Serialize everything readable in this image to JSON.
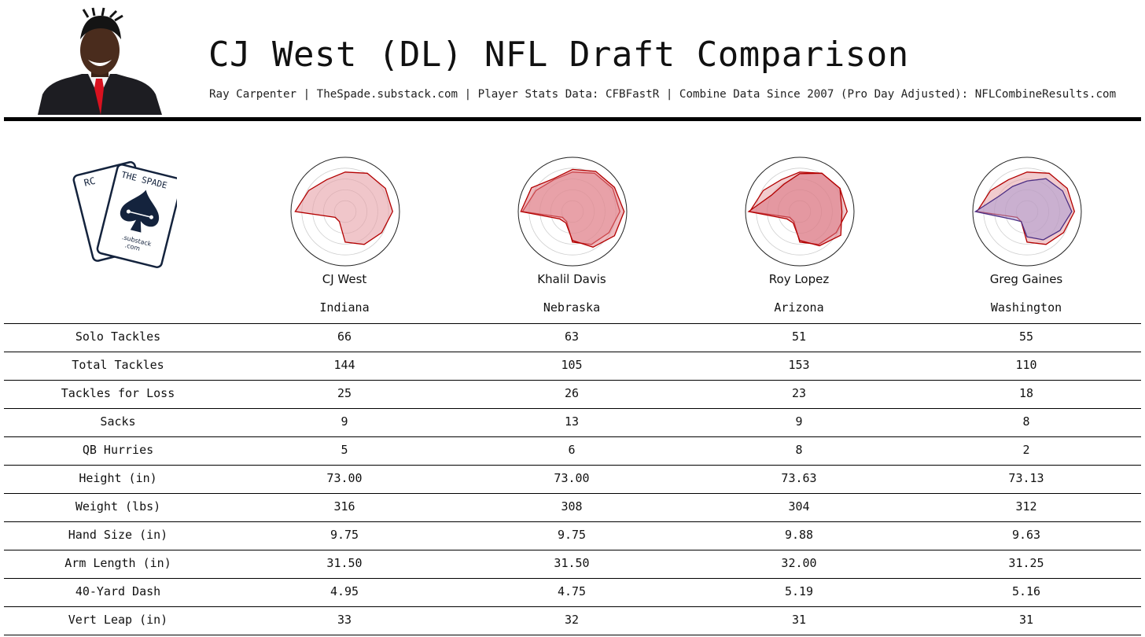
{
  "header": {
    "title": "CJ West (DL) NFL Draft Comparison",
    "subtitle": "Ray Carpenter | TheSpade.substack.com | Player Stats Data: CFBFastR | Combine Data Since 2007 (Pro Day Adjusted): NFLCombineResults.com"
  },
  "logo": {
    "left_card_text": "RC",
    "right_card_text": "THE SPADE",
    "footer_text_1": ".substack",
    "footer_text_2": ".com",
    "color": "#14233d"
  },
  "players": [
    {
      "name": "CJ West",
      "school": "Indiana"
    },
    {
      "name": "Khalil Davis",
      "school": "Nebraska"
    },
    {
      "name": "Roy Lopez",
      "school": "Arizona"
    },
    {
      "name": "Greg Gaines",
      "school": "Washington"
    }
  ],
  "table": {
    "rows": [
      {
        "label": "Solo Tackles",
        "values": [
          "66",
          "63",
          "51",
          "55"
        ]
      },
      {
        "label": "Total Tackles",
        "values": [
          "144",
          "105",
          "153",
          "110"
        ]
      },
      {
        "label": "Tackles for Loss",
        "values": [
          "25",
          "26",
          "23",
          "18"
        ]
      },
      {
        "label": "Sacks",
        "values": [
          "9",
          "13",
          "9",
          "8"
        ]
      },
      {
        "label": "QB Hurries",
        "values": [
          "5",
          "6",
          "8",
          "2"
        ]
      },
      {
        "label": "Height (in)",
        "values": [
          "73.00",
          "73.00",
          "73.63",
          "73.13"
        ]
      },
      {
        "label": "Weight (lbs)",
        "values": [
          "316",
          "308",
          "304",
          "312"
        ]
      },
      {
        "label": "Hand Size (in)",
        "values": [
          "9.75",
          "9.75",
          "9.88",
          "9.63"
        ]
      },
      {
        "label": "Arm Length (in)",
        "values": [
          "31.50",
          "31.50",
          "32.00",
          "31.25"
        ]
      },
      {
        "label": "40-Yard Dash",
        "values": [
          "4.95",
          "4.75",
          "5.19",
          "5.16"
        ]
      },
      {
        "label": "Vert Leap (in)",
        "values": [
          "33",
          "32",
          "31",
          "31"
        ]
      }
    ]
  },
  "chart_data": {
    "type": "radar",
    "axis_range": [
      0,
      1
    ],
    "ring_count": 5,
    "reference_color": "#b30000",
    "reference_fill": "#e6a0a6",
    "comparison_colors": [
      "#b30000",
      "#b30000",
      "#b30000",
      "#4b2e83"
    ],
    "comparison_fills": [
      "#e6a0a6",
      "#e08088",
      "#d9707c",
      "#a99ad1"
    ],
    "series": [
      {
        "values": [
          0.75,
          0.84,
          0.88,
          0.9,
          0.8,
          0.72,
          0.58,
          0.22,
          0.22,
          0.95,
          0.8,
          0.7
        ]
      },
      {
        "values": [
          0.8,
          0.88,
          0.92,
          0.98,
          0.92,
          0.78,
          0.55,
          0.25,
          0.28,
          0.98,
          0.9,
          0.72
        ]
      },
      {
        "values": [
          0.72,
          0.84,
          0.88,
          0.8,
          0.9,
          0.75,
          0.55,
          0.25,
          0.28,
          0.97,
          0.62,
          0.6
        ]
      },
      {
        "values": [
          0.58,
          0.72,
          0.78,
          0.85,
          0.72,
          0.62,
          0.48,
          0.22,
          0.3,
          0.98,
          0.6,
          0.55
        ]
      }
    ]
  }
}
